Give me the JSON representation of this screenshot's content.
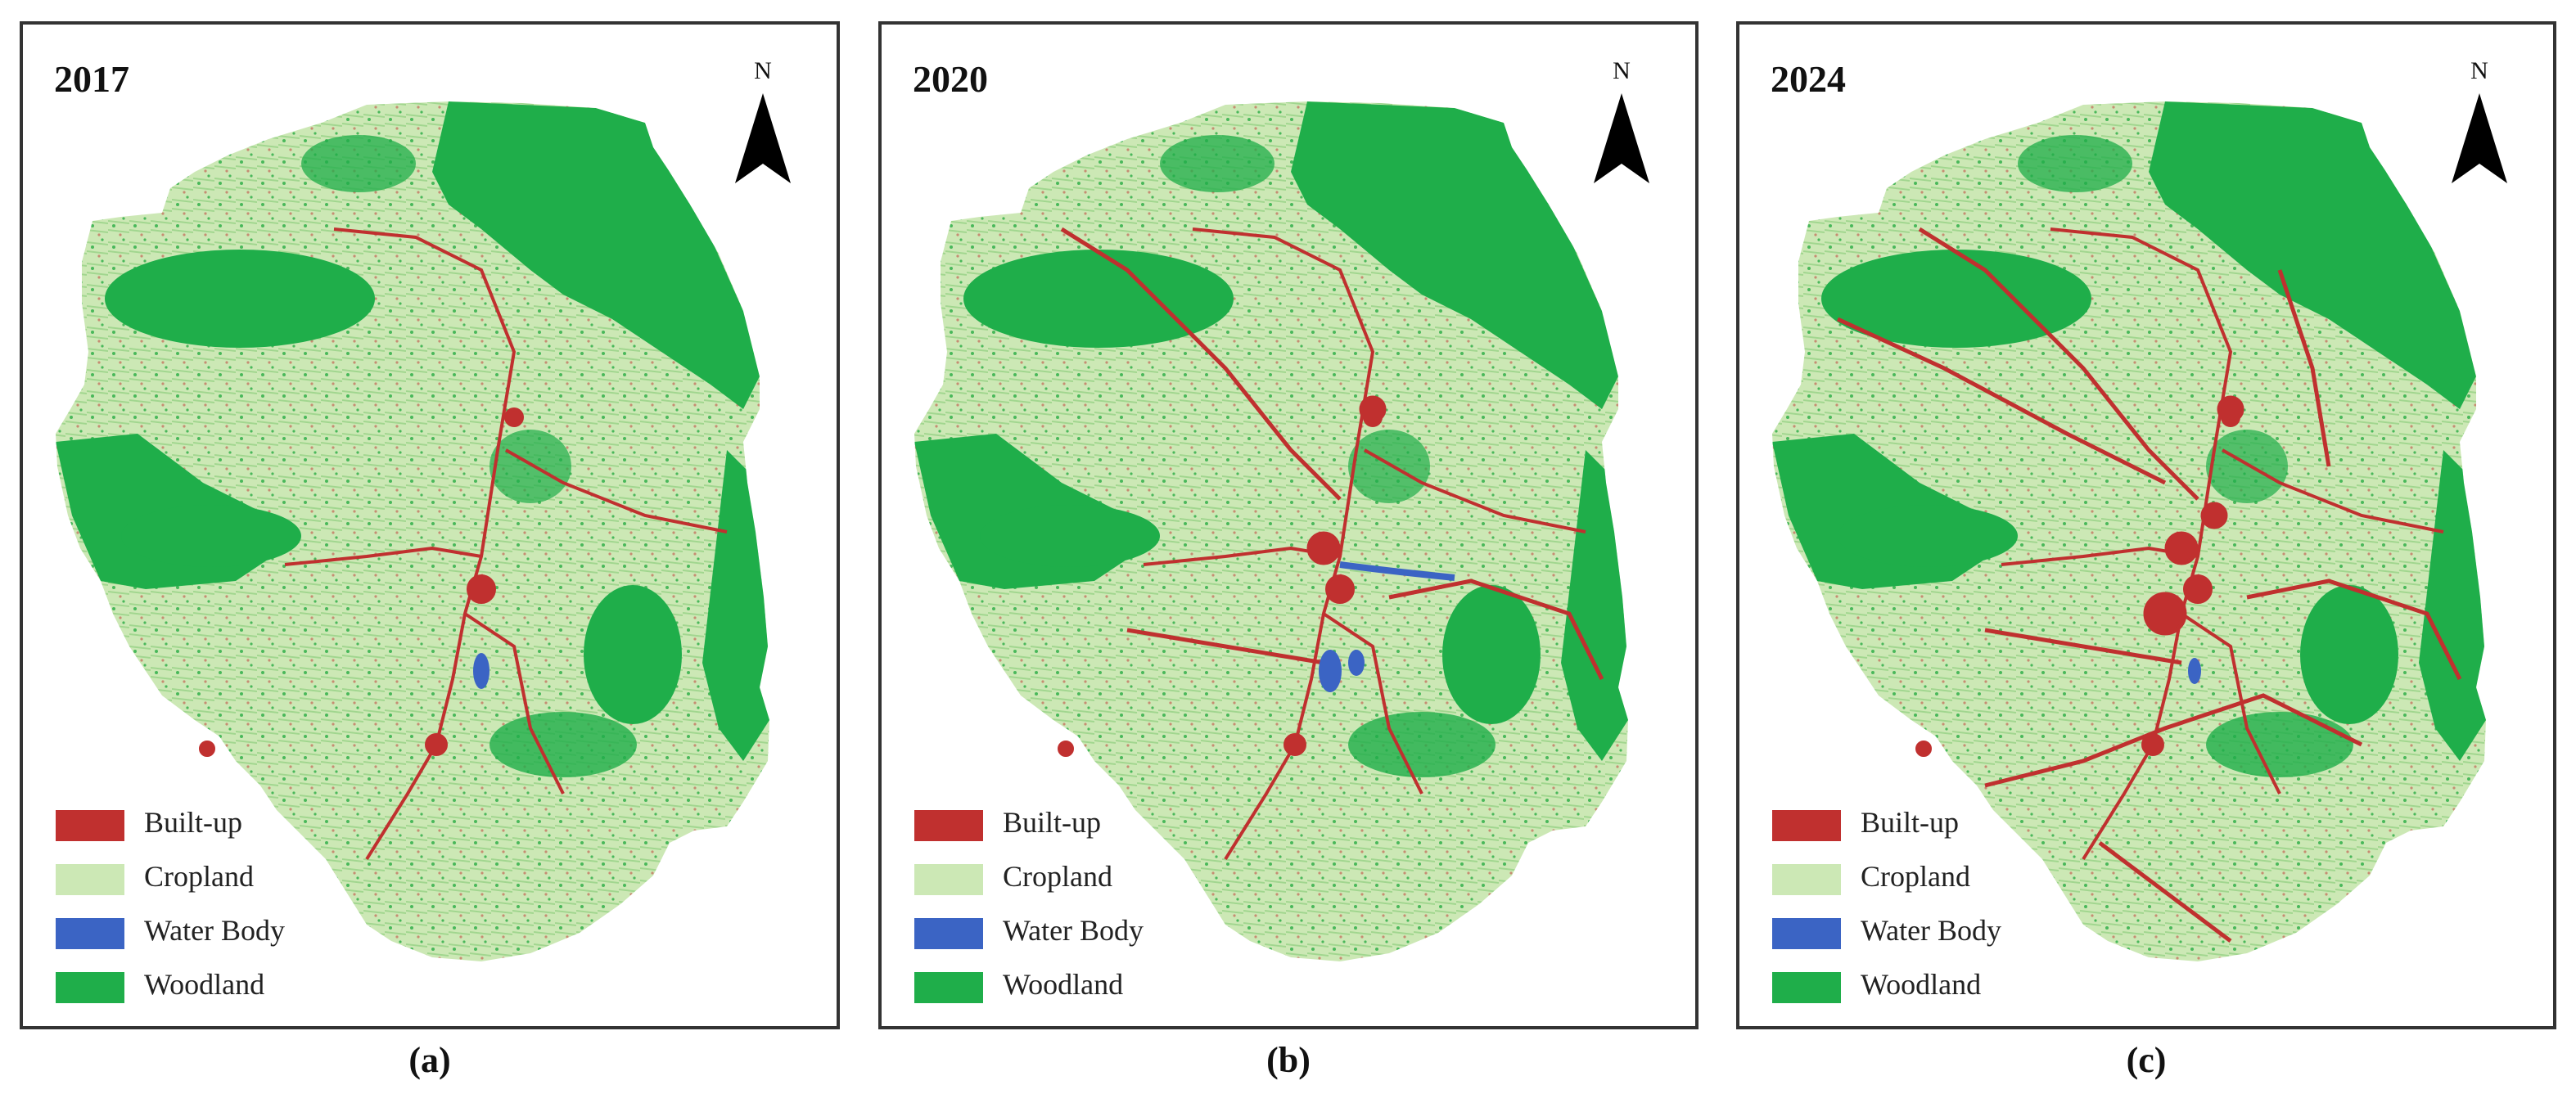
{
  "colors": {
    "built_up": "#c0302f",
    "cropland": "#cce8b5",
    "water_body": "#3b64c4",
    "woodland": "#1fae4a"
  },
  "north_label": "N",
  "panels": [
    {
      "year": "2017",
      "caption": "(a)"
    },
    {
      "year": "2020",
      "caption": "(b)"
    },
    {
      "year": "2024",
      "caption": "(c)"
    }
  ],
  "legend": {
    "items": [
      {
        "label": "Built-up",
        "color": "#c0302f"
      },
      {
        "label": "Cropland",
        "color": "#cce8b5"
      },
      {
        "label": "Water Body",
        "color": "#3b64c4"
      },
      {
        "label": "Woodland",
        "color": "#1fae4a"
      }
    ]
  }
}
